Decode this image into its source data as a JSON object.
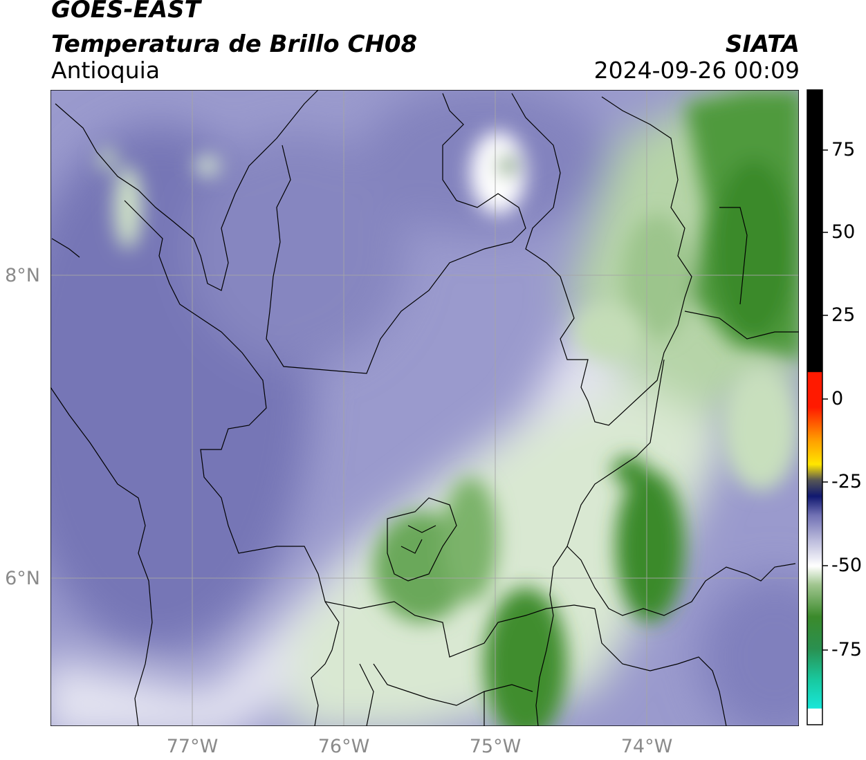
{
  "header": {
    "satellite": "GOES-EAST",
    "product": "Temperatura de Brillo CH08",
    "region": "Antioquia",
    "organization": "SIATA",
    "timestamp": "2024-09-26 00:09"
  },
  "map": {
    "lat_labels": [
      "8°N",
      "6°N"
    ],
    "lon_labels": [
      "77°W",
      "76°W",
      "75°W",
      "74°W"
    ],
    "gridline_color": "#a6a6a6",
    "border_color": "#000000"
  },
  "colorbar": {
    "ticks": [
      "75",
      "50",
      "25",
      "0",
      "-25",
      "-50",
      "-75"
    ],
    "colors": {
      "purple": "#7171b4",
      "white": "#ffffff",
      "green": "#3b8a2b",
      "cyan": "#18e6d8",
      "black": "#000000",
      "red": "#ff1a00",
      "yellow": "#ffe600",
      "navy": "#101870"
    }
  }
}
